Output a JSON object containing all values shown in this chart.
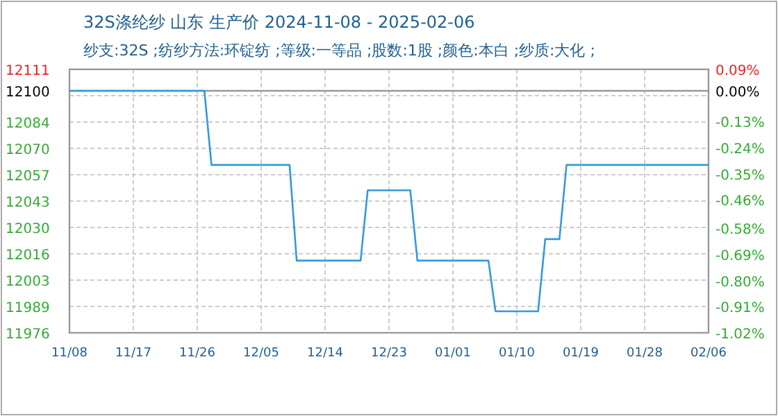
{
  "chart_data": {
    "type": "line",
    "title": "32S涤纶纱 山东 生产价 2024-11-08 - 2025-02-06",
    "subtitle": "纱支:32S ;纺纱方法:环锭纺 ;等级:一等品 ;股数:1股 ;颜色:本白 ;纱质:大化 ;",
    "x": [
      "2024-11-08",
      "2024-11-27",
      "2024-11-28",
      "2024-12-09",
      "2024-12-10",
      "2024-12-19",
      "2024-12-20",
      "2024-12-26",
      "2024-12-27",
      "2025-01-06",
      "2025-01-07",
      "2025-01-13",
      "2025-01-14",
      "2025-01-16",
      "2025-01-17",
      "2025-02-06"
    ],
    "series": [
      {
        "color": "#3399dd",
        "values": [
          12100,
          12100,
          12062,
          12062,
          12013,
          12013,
          12049,
          12049,
          12013,
          12013,
          11987,
          11987,
          12024,
          12024,
          12062,
          12062
        ]
      }
    ],
    "xlim": [
      "2024-11-08",
      "2025-02-06"
    ],
    "xticks": [
      {
        "value": "2024-11-08",
        "label": "11/08"
      },
      {
        "value": "2024-11-17",
        "label": "11/17"
      },
      {
        "value": "2024-11-26",
        "label": "11/26"
      },
      {
        "value": "2024-12-05",
        "label": "12/05"
      },
      {
        "value": "2024-12-14",
        "label": "12/14"
      },
      {
        "value": "2024-12-23",
        "label": "12/23"
      },
      {
        "value": "2025-01-01",
        "label": "01/01"
      },
      {
        "value": "2025-01-10",
        "label": "01/10"
      },
      {
        "value": "2025-01-19",
        "label": "01/19"
      },
      {
        "value": "2025-01-28",
        "label": "01/28"
      },
      {
        "value": "2025-02-06",
        "label": "02/06"
      }
    ],
    "ylim": [
      11976,
      12111
    ],
    "yticks": [
      11976,
      {
        "value": 11989.5,
        "label": "11989"
      },
      12003,
      {
        "value": 12016.5,
        "label": "12016"
      },
      12030,
      {
        "value": 12043.5,
        "label": "12043"
      },
      12057,
      {
        "value": 12070.5,
        "label": "12070"
      },
      12084,
      {
        "value": 12097.5,
        "label": null
      },
      12100,
      12111
    ],
    "y2lim": [
      -1.02,
      0.09
    ],
    "y2ticks": [
      {
        "value": -1.02,
        "label": "-1.02%"
      },
      {
        "value": -0.91,
        "label": "-0.91%"
      },
      {
        "value": -0.8,
        "label": "-0.80%"
      },
      {
        "value": -0.69,
        "label": "-0.69%"
      },
      {
        "value": -0.58,
        "label": "-0.58%"
      },
      {
        "value": -0.46,
        "label": "-0.46%"
      },
      {
        "value": -0.35,
        "label": "-0.35%"
      },
      {
        "value": -0.24,
        "label": "-0.24%"
      },
      {
        "value": -0.13,
        "label": "-0.13%"
      },
      {
        "value": 0,
        "label": "0.00%"
      },
      {
        "value": 0.09,
        "label": "0.09%"
      }
    ],
    "ref_lines": [
      {
        "axis": "y",
        "value": 12100,
        "color": "#999999"
      }
    ],
    "grid": true
  }
}
